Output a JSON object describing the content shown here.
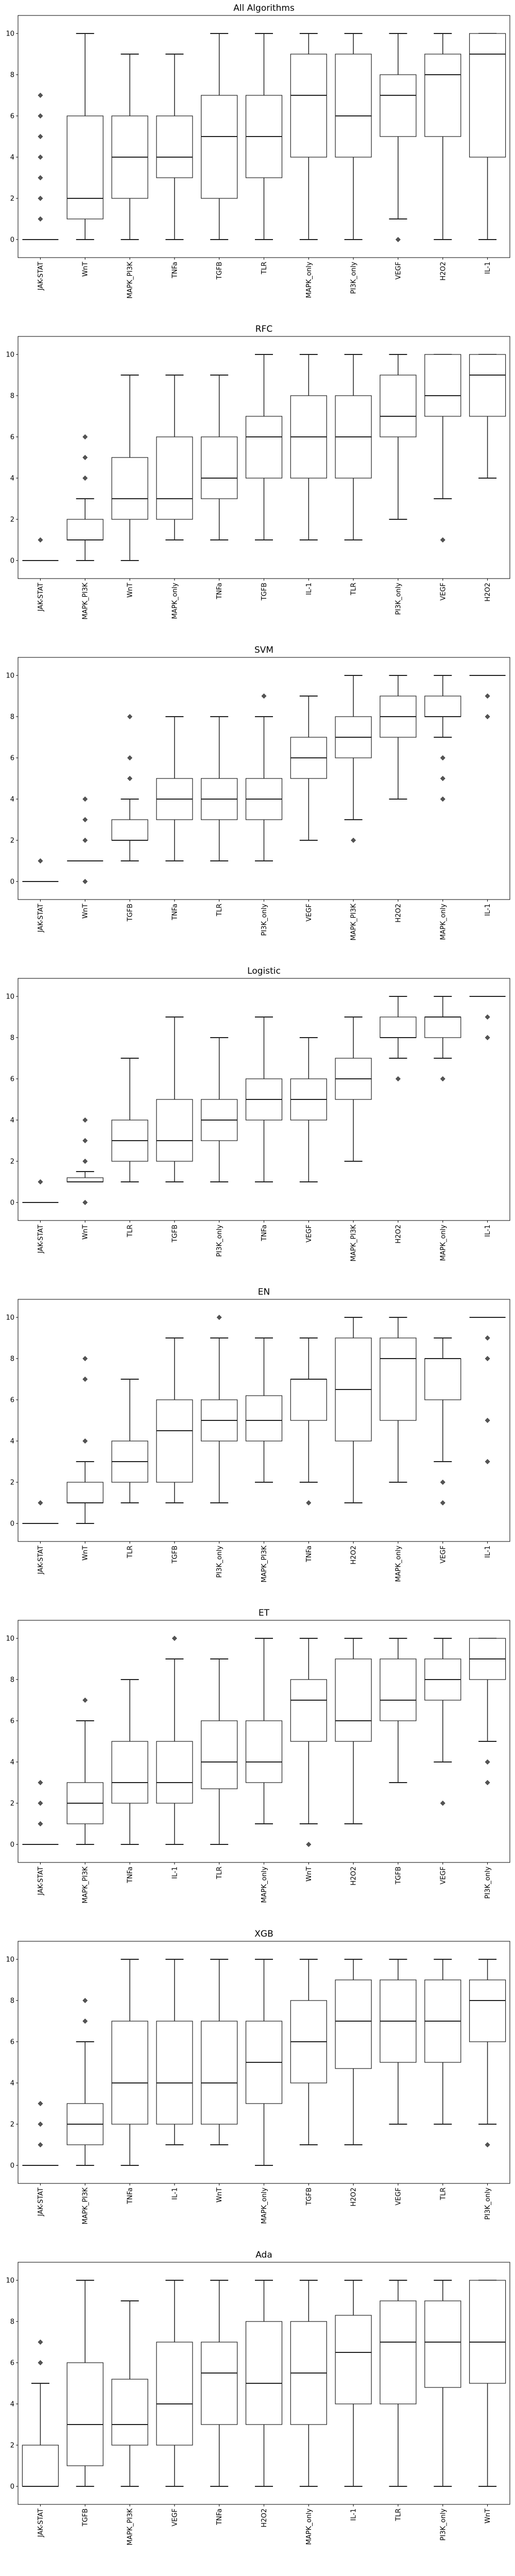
{
  "chart_data": [
    {
      "type": "box",
      "title": "All Algorithms",
      "ylim": [
        -0.5,
        10.5
      ],
      "yticks": [
        0,
        2,
        4,
        6,
        8,
        10
      ],
      "categories": [
        "JAK-STAT",
        "WnT",
        "MAPK_PI3K",
        "TNFa",
        "TGFB",
        "TLR",
        "MAPK_only",
        "PI3K_only",
        "VEGF",
        "H2O2",
        "IL-1"
      ],
      "boxes": [
        {
          "whislo": 0,
          "q1": 0,
          "med": 0,
          "q3": 0,
          "whishi": 0,
          "fliers": [
            1,
            2,
            3,
            4,
            5,
            6,
            7
          ]
        },
        {
          "whislo": 0,
          "q1": 1,
          "med": 2,
          "q3": 6,
          "whishi": 10,
          "fliers": []
        },
        {
          "whislo": 0,
          "q1": 2,
          "med": 4,
          "q3": 6,
          "whishi": 9,
          "fliers": []
        },
        {
          "whislo": 0,
          "q1": 3,
          "med": 4,
          "q3": 6,
          "whishi": 9,
          "fliers": []
        },
        {
          "whislo": 0,
          "q1": 2,
          "med": 5,
          "q3": 7,
          "whishi": 10,
          "fliers": []
        },
        {
          "whislo": 0,
          "q1": 3,
          "med": 5,
          "q3": 7,
          "whishi": 10,
          "fliers": []
        },
        {
          "whislo": 0,
          "q1": 4,
          "med": 7,
          "q3": 9,
          "whishi": 10,
          "fliers": []
        },
        {
          "whislo": 0,
          "q1": 4,
          "med": 6,
          "q3": 9,
          "whishi": 10,
          "fliers": []
        },
        {
          "whislo": 1,
          "q1": 5,
          "med": 7,
          "q3": 8,
          "whishi": 10,
          "fliers": [
            0
          ]
        },
        {
          "whislo": 0,
          "q1": 5,
          "med": 8,
          "q3": 9,
          "whishi": 10,
          "fliers": []
        },
        {
          "whislo": 0,
          "q1": 4,
          "med": 9,
          "q3": 10,
          "whishi": 10,
          "fliers": []
        }
      ]
    },
    {
      "type": "box",
      "title": "RFC",
      "ylim": [
        -0.5,
        10.5
      ],
      "yticks": [
        0,
        2,
        4,
        6,
        8,
        10
      ],
      "categories": [
        "JAK-STAT",
        "MAPK_PI3K",
        "WnT",
        "MAPK_only",
        "TNFa",
        "TGFB",
        "IL-1",
        "TLR",
        "PI3K_only",
        "VEGF",
        "H2O2"
      ],
      "boxes": [
        {
          "whislo": 0,
          "q1": 0,
          "med": 0,
          "q3": 0,
          "whishi": 0,
          "fliers": [
            1
          ]
        },
        {
          "whislo": 0,
          "q1": 1,
          "med": 1,
          "q3": 2,
          "whishi": 3,
          "fliers": [
            4,
            5,
            6
          ]
        },
        {
          "whislo": 0,
          "q1": 2,
          "med": 3,
          "q3": 5,
          "whishi": 9,
          "fliers": []
        },
        {
          "whislo": 1,
          "q1": 2,
          "med": 3,
          "q3": 6,
          "whishi": 9,
          "fliers": []
        },
        {
          "whislo": 1,
          "q1": 3,
          "med": 4,
          "q3": 6,
          "whishi": 9,
          "fliers": []
        },
        {
          "whislo": 1,
          "q1": 4,
          "med": 6,
          "q3": 7,
          "whishi": 10,
          "fliers": []
        },
        {
          "whislo": 1,
          "q1": 4,
          "med": 6,
          "q3": 8,
          "whishi": 10,
          "fliers": []
        },
        {
          "whislo": 1,
          "q1": 4,
          "med": 6,
          "q3": 8,
          "whishi": 10,
          "fliers": []
        },
        {
          "whislo": 2,
          "q1": 6,
          "med": 7,
          "q3": 9,
          "whishi": 10,
          "fliers": []
        },
        {
          "whislo": 3,
          "q1": 7,
          "med": 8,
          "q3": 10,
          "whishi": 10,
          "fliers": [
            1
          ]
        },
        {
          "whislo": 4,
          "q1": 7,
          "med": 9,
          "q3": 10,
          "whishi": 10,
          "fliers": []
        }
      ]
    },
    {
      "type": "box",
      "title": "SVM",
      "ylim": [
        -0.5,
        10.5
      ],
      "yticks": [
        0,
        2,
        4,
        6,
        8,
        10
      ],
      "categories": [
        "JAK-STAT",
        "WnT",
        "TGFB",
        "TNFa",
        "TLR",
        "PI3K_only",
        "VEGF",
        "MAPK_PI3K",
        "H2O2",
        "MAPK_only",
        "IL-1"
      ],
      "boxes": [
        {
          "whislo": 0,
          "q1": 0,
          "med": 0,
          "q3": 0,
          "whishi": 0,
          "fliers": [
            1
          ]
        },
        {
          "whislo": 1,
          "q1": 1,
          "med": 1,
          "q3": 1,
          "whishi": 1,
          "fliers": [
            0,
            2,
            3,
            4
          ]
        },
        {
          "whislo": 1,
          "q1": 2,
          "med": 2,
          "q3": 3,
          "whishi": 4,
          "fliers": [
            5,
            6,
            8
          ]
        },
        {
          "whislo": 1,
          "q1": 3,
          "med": 4,
          "q3": 5,
          "whishi": 8,
          "fliers": []
        },
        {
          "whislo": 1,
          "q1": 3,
          "med": 4,
          "q3": 5,
          "whishi": 8,
          "fliers": []
        },
        {
          "whislo": 1,
          "q1": 3,
          "med": 4,
          "q3": 5,
          "whishi": 8,
          "fliers": [
            9
          ]
        },
        {
          "whislo": 2,
          "q1": 5,
          "med": 6,
          "q3": 7,
          "whishi": 9,
          "fliers": []
        },
        {
          "whislo": 3,
          "q1": 6,
          "med": 7,
          "q3": 8,
          "whishi": 10,
          "fliers": [
            2
          ]
        },
        {
          "whislo": 4,
          "q1": 7,
          "med": 8,
          "q3": 9,
          "whishi": 10,
          "fliers": []
        },
        {
          "whislo": 7,
          "q1": 8,
          "med": 8,
          "q3": 9,
          "whishi": 10,
          "fliers": [
            4,
            5,
            6
          ]
        },
        {
          "whislo": 10,
          "q1": 10,
          "med": 10,
          "q3": 10,
          "whishi": 10,
          "fliers": [
            8,
            9
          ]
        }
      ]
    },
    {
      "type": "box",
      "title": "Logistic",
      "ylim": [
        -0.5,
        10.5
      ],
      "yticks": [
        0,
        2,
        4,
        6,
        8,
        10
      ],
      "categories": [
        "JAK-STAT",
        "WnT",
        "TLR",
        "TGFB",
        "PI3K_only",
        "TNFa",
        "VEGF",
        "MAPK_PI3K",
        "H2O2",
        "MAPK_only",
        "IL-1"
      ],
      "boxes": [
        {
          "whislo": 0,
          "q1": 0,
          "med": 0,
          "q3": 0,
          "whishi": 0,
          "fliers": [
            1
          ]
        },
        {
          "whislo": 1,
          "q1": 1,
          "med": 1,
          "q3": 1.2,
          "whishi": 1.5,
          "fliers": [
            0,
            2,
            3,
            4
          ]
        },
        {
          "whislo": 1,
          "q1": 2,
          "med": 3,
          "q3": 4,
          "whishi": 7,
          "fliers": []
        },
        {
          "whislo": 1,
          "q1": 2,
          "med": 3,
          "q3": 5,
          "whishi": 9,
          "fliers": []
        },
        {
          "whislo": 1,
          "q1": 3,
          "med": 4,
          "q3": 5,
          "whishi": 8,
          "fliers": []
        },
        {
          "whislo": 1,
          "q1": 4,
          "med": 5,
          "q3": 6,
          "whishi": 9,
          "fliers": []
        },
        {
          "whislo": 1,
          "q1": 4,
          "med": 5,
          "q3": 6,
          "whishi": 8,
          "fliers": []
        },
        {
          "whislo": 2,
          "q1": 5,
          "med": 6,
          "q3": 7,
          "whishi": 9,
          "fliers": []
        },
        {
          "whislo": 7,
          "q1": 8,
          "med": 8,
          "q3": 9,
          "whishi": 10,
          "fliers": [
            6
          ]
        },
        {
          "whislo": 7,
          "q1": 8,
          "med": 9,
          "q3": 9,
          "whishi": 10,
          "fliers": [
            6
          ]
        },
        {
          "whislo": 10,
          "q1": 10,
          "med": 10,
          "q3": 10,
          "whishi": 10,
          "fliers": [
            8,
            9
          ]
        }
      ]
    },
    {
      "type": "box",
      "title": "EN",
      "ylim": [
        -0.5,
        10.5
      ],
      "yticks": [
        0,
        2,
        4,
        6,
        8,
        10
      ],
      "categories": [
        "JAK-STAT",
        "WnT",
        "TLR",
        "TGFB",
        "PI3K_only",
        "MAPK_PI3K",
        "TNFa",
        "H2O2",
        "MAPK_only",
        "VEGF",
        "IL-1"
      ],
      "boxes": [
        {
          "whislo": 0,
          "q1": 0,
          "med": 0,
          "q3": 0,
          "whishi": 0,
          "fliers": [
            1
          ]
        },
        {
          "whislo": 0,
          "q1": 1,
          "med": 1,
          "q3": 2,
          "whishi": 3,
          "fliers": [
            4,
            7,
            8
          ]
        },
        {
          "whislo": 1,
          "q1": 2,
          "med": 3,
          "q3": 4,
          "whishi": 7,
          "fliers": []
        },
        {
          "whislo": 1,
          "q1": 2,
          "med": 4.5,
          "q3": 6,
          "whishi": 9,
          "fliers": []
        },
        {
          "whislo": 1,
          "q1": 4,
          "med": 5,
          "q3": 6,
          "whishi": 9,
          "fliers": [
            10
          ]
        },
        {
          "whislo": 2,
          "q1": 4,
          "med": 5,
          "q3": 6.2,
          "whishi": 9,
          "fliers": []
        },
        {
          "whislo": 2,
          "q1": 5,
          "med": 7,
          "q3": 7,
          "whishi": 9,
          "fliers": [
            1
          ]
        },
        {
          "whislo": 1,
          "q1": 4,
          "med": 6.5,
          "q3": 9,
          "whishi": 10,
          "fliers": []
        },
        {
          "whislo": 2,
          "q1": 5,
          "med": 8,
          "q3": 9,
          "whishi": 10,
          "fliers": []
        },
        {
          "whislo": 3,
          "q1": 6,
          "med": 8,
          "q3": 8,
          "whishi": 9,
          "fliers": [
            1,
            2
          ]
        },
        {
          "whislo": 10,
          "q1": 10,
          "med": 10,
          "q3": 10,
          "whishi": 10,
          "fliers": [
            3,
            5,
            8,
            9
          ]
        }
      ]
    },
    {
      "type": "box",
      "title": "ET",
      "ylim": [
        -0.5,
        10.5
      ],
      "yticks": [
        0,
        2,
        4,
        6,
        8,
        10
      ],
      "categories": [
        "JAK-STAT",
        "MAPK_PI3K",
        "TNFa",
        "IL-1",
        "TLR",
        "MAPK_only",
        "WnT",
        "H2O2",
        "TGFB",
        "VEGF",
        "PI3K_only"
      ],
      "boxes": [
        {
          "whislo": 0,
          "q1": 0,
          "med": 0,
          "q3": 0,
          "whishi": 0,
          "fliers": [
            1,
            2,
            3
          ]
        },
        {
          "whislo": 0,
          "q1": 1,
          "med": 2,
          "q3": 3,
          "whishi": 6,
          "fliers": [
            7
          ]
        },
        {
          "whislo": 0,
          "q1": 2,
          "med": 3,
          "q3": 5,
          "whishi": 8,
          "fliers": []
        },
        {
          "whislo": 0,
          "q1": 2,
          "med": 3,
          "q3": 5,
          "whishi": 9,
          "fliers": [
            10
          ]
        },
        {
          "whislo": 0,
          "q1": 2.7,
          "med": 4,
          "q3": 6,
          "whishi": 9,
          "fliers": []
        },
        {
          "whislo": 1,
          "q1": 3,
          "med": 4,
          "q3": 6,
          "whishi": 10,
          "fliers": []
        },
        {
          "whislo": 1,
          "q1": 5,
          "med": 7,
          "q3": 8,
          "whishi": 10,
          "fliers": [
            0
          ]
        },
        {
          "whislo": 1,
          "q1": 5,
          "med": 6,
          "q3": 9,
          "whishi": 10,
          "fliers": []
        },
        {
          "whislo": 3,
          "q1": 6,
          "med": 7,
          "q3": 9,
          "whishi": 10,
          "fliers": []
        },
        {
          "whislo": 4,
          "q1": 7,
          "med": 8,
          "q3": 9,
          "whishi": 10,
          "fliers": [
            2
          ]
        },
        {
          "whislo": 5,
          "q1": 8,
          "med": 9,
          "q3": 10,
          "whishi": 10,
          "fliers": [
            3,
            4
          ]
        }
      ]
    },
    {
      "type": "box",
      "title": "XGB",
      "ylim": [
        -0.5,
        10.5
      ],
      "yticks": [
        0,
        2,
        4,
        6,
        8,
        10
      ],
      "categories": [
        "JAK-STAT",
        "MAPK_PI3K",
        "TNFa",
        "IL-1",
        "WnT",
        "MAPK_only",
        "TGFB",
        "H2O2",
        "VEGF",
        "TLR",
        "PI3K_only"
      ],
      "boxes": [
        {
          "whislo": 0,
          "q1": 0,
          "med": 0,
          "q3": 0,
          "whishi": 0,
          "fliers": [
            1,
            2,
            3
          ]
        },
        {
          "whislo": 0,
          "q1": 1,
          "med": 2,
          "q3": 3,
          "whishi": 6,
          "fliers": [
            7,
            8
          ]
        },
        {
          "whislo": 0,
          "q1": 2,
          "med": 4,
          "q3": 7,
          "whishi": 10,
          "fliers": []
        },
        {
          "whislo": 1,
          "q1": 2,
          "med": 4,
          "q3": 7,
          "whishi": 10,
          "fliers": []
        },
        {
          "whislo": 1,
          "q1": 2,
          "med": 4,
          "q3": 7,
          "whishi": 10,
          "fliers": []
        },
        {
          "whislo": 0,
          "q1": 3,
          "med": 5,
          "q3": 7,
          "whishi": 10,
          "fliers": []
        },
        {
          "whislo": 1,
          "q1": 4,
          "med": 6,
          "q3": 8,
          "whishi": 10,
          "fliers": []
        },
        {
          "whislo": 1,
          "q1": 4.7,
          "med": 7,
          "q3": 9,
          "whishi": 10,
          "fliers": []
        },
        {
          "whislo": 2,
          "q1": 5,
          "med": 7,
          "q3": 9,
          "whishi": 10,
          "fliers": []
        },
        {
          "whislo": 2,
          "q1": 5,
          "med": 7,
          "q3": 9,
          "whishi": 10,
          "fliers": []
        },
        {
          "whislo": 2,
          "q1": 6,
          "med": 8,
          "q3": 9,
          "whishi": 10,
          "fliers": [
            1
          ]
        }
      ]
    },
    {
      "type": "box",
      "title": "Ada",
      "ylim": [
        -0.5,
        10.5
      ],
      "yticks": [
        0,
        2,
        4,
        6,
        8,
        10
      ],
      "categories": [
        "JAK-STAT",
        "TGFB",
        "MAPK_PI3K",
        "VEGF",
        "TNFa",
        "H2O2",
        "MAPK_only",
        "IL-1",
        "TLR",
        "PI3K_only",
        "WnT"
      ],
      "boxes": [
        {
          "whislo": 0,
          "q1": 0,
          "med": 0,
          "q3": 2,
          "whishi": 5,
          "fliers": [
            6,
            7
          ]
        },
        {
          "whislo": 0,
          "q1": 1,
          "med": 3,
          "q3": 6,
          "whishi": 10,
          "fliers": []
        },
        {
          "whislo": 0,
          "q1": 2,
          "med": 3,
          "q3": 5.2,
          "whishi": 9,
          "fliers": []
        },
        {
          "whislo": 0,
          "q1": 2,
          "med": 4,
          "q3": 7,
          "whishi": 10,
          "fliers": []
        },
        {
          "whislo": 0,
          "q1": 3,
          "med": 5.5,
          "q3": 7,
          "whishi": 10,
          "fliers": []
        },
        {
          "whislo": 0,
          "q1": 3,
          "med": 5,
          "q3": 8,
          "whishi": 10,
          "fliers": []
        },
        {
          "whislo": 0,
          "q1": 3,
          "med": 5.5,
          "q3": 8,
          "whishi": 10,
          "fliers": []
        },
        {
          "whislo": 0,
          "q1": 4,
          "med": 6.5,
          "q3": 8.3,
          "whishi": 10,
          "fliers": []
        },
        {
          "whislo": 0,
          "q1": 4,
          "med": 7,
          "q3": 9,
          "whishi": 10,
          "fliers": []
        },
        {
          "whislo": 0,
          "q1": 4.8,
          "med": 7,
          "q3": 9,
          "whishi": 10,
          "fliers": []
        },
        {
          "whislo": 0,
          "q1": 5,
          "med": 7,
          "q3": 10,
          "whishi": 10,
          "fliers": []
        }
      ]
    }
  ]
}
